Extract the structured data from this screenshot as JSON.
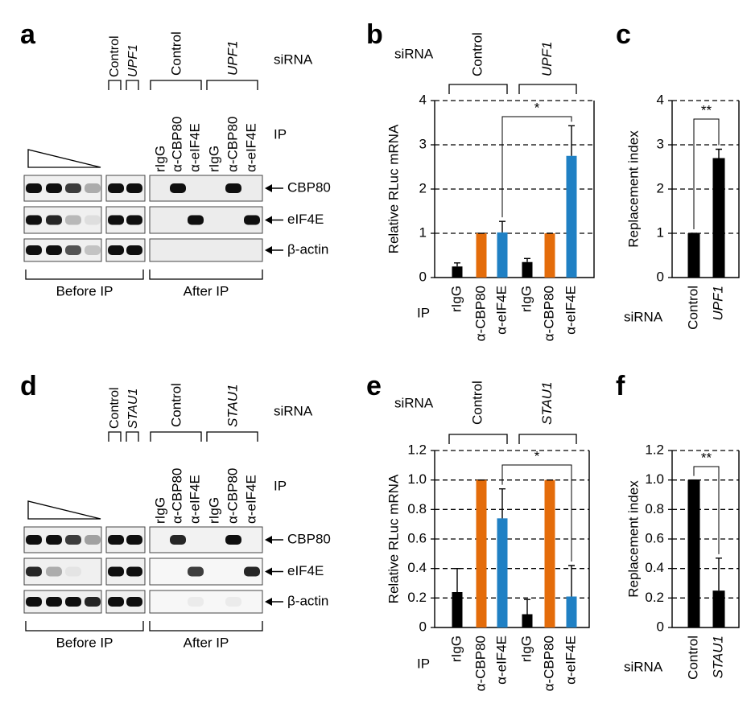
{
  "panel_letters": [
    "a",
    "b",
    "c",
    "d",
    "e",
    "f"
  ],
  "blots": [
    {
      "sirna_label": "siRNA",
      "before_sirna": [
        "Control",
        "UPF1"
      ],
      "after_sirna": [
        "Control",
        "UPF1"
      ],
      "ip_label": "IP",
      "ip_lanes": [
        "rIgG",
        "α-CBP80",
        "α-eIF4E",
        "rIgG",
        "α-CBP80",
        "α-eIF4E"
      ],
      "proteins": [
        "CBP80",
        "eIF4E",
        "β-actin"
      ],
      "sections": [
        "Before IP",
        "After IP"
      ]
    },
    {
      "sirna_label": "siRNA",
      "before_sirna": [
        "Control",
        "STAU1"
      ],
      "after_sirna": [
        "Control",
        "STAU1"
      ],
      "ip_label": "IP",
      "ip_lanes": [
        "rIgG",
        "α-CBP80",
        "α-eIF4E",
        "rIgG",
        "α-CBP80",
        "α-eIF4E"
      ],
      "proteins": [
        "CBP80",
        "eIF4E",
        "β-actin"
      ],
      "sections": [
        "Before IP",
        "After IP"
      ]
    }
  ],
  "chart_data": [
    {
      "type": "bar",
      "ylabel": "Relative RLuc mRNA",
      "ylim": [
        0,
        4
      ],
      "yticks": [
        0,
        1,
        2,
        3,
        4
      ],
      "grid": true,
      "categories": [
        "rIgG",
        "α-CBP80",
        "α-eIF4E",
        "rIgG",
        "α-CBP80",
        "α-eIF4E"
      ],
      "values": [
        0.25,
        1,
        1.02,
        0.35,
        1,
        2.75
      ],
      "errors": [
        0.08,
        0,
        0.25,
        0.08,
        0,
        0.68
      ],
      "colors": [
        "#000000",
        "#e46c0a",
        "#1f80c4",
        "#000000",
        "#e46c0a",
        "#1f80c4"
      ],
      "x_axis_label": "IP",
      "group_label": "siRNA",
      "groups": [
        "Control",
        "UPF1"
      ],
      "significance": "*"
    },
    {
      "type": "bar",
      "ylabel": "Replacement index",
      "ylim": [
        0,
        4
      ],
      "yticks": [
        0,
        1,
        2,
        3,
        4
      ],
      "grid": true,
      "categories": [
        "Control",
        "UPF1"
      ],
      "values": [
        1,
        2.7
      ],
      "errors": [
        0,
        0.2
      ],
      "colors": [
        "#000000",
        "#000000"
      ],
      "x_axis_label": "siRNA",
      "significance": "**"
    },
    {
      "type": "bar",
      "ylabel": "Relative RLuc mRNA",
      "ylim": [
        0,
        1.2
      ],
      "yticks": [
        0,
        0.2,
        0.4,
        0.6,
        0.8,
        {
          "value": 1,
          "label": "1.0"
        },
        1.2
      ],
      "grid": true,
      "categories": [
        "rIgG",
        "α-CBP80",
        "α-eIF4E",
        "rIgG",
        "α-CBP80",
        "α-eIF4E"
      ],
      "values": [
        0.24,
        1,
        0.74,
        0.09,
        1,
        0.21
      ],
      "errors": [
        0.16,
        0,
        0.2,
        0.1,
        0,
        0.21
      ],
      "colors": [
        "#000000",
        "#e46c0a",
        "#1f80c4",
        "#000000",
        "#e46c0a",
        "#1f80c4"
      ],
      "x_axis_label": "IP",
      "group_label": "siRNA",
      "groups": [
        "Control",
        "STAU1"
      ],
      "significance": "*"
    },
    {
      "type": "bar",
      "ylabel": "Replacement index",
      "ylim": [
        0,
        1.2
      ],
      "yticks": [
        0,
        0.2,
        0.4,
        0.6,
        0.8,
        {
          "value": 1,
          "label": "1.0"
        },
        1.2
      ],
      "grid": true,
      "categories": [
        "Control",
        "STAU1"
      ],
      "values": [
        1,
        0.25
      ],
      "errors": [
        0,
        0.22
      ],
      "colors": [
        "#000000",
        "#000000"
      ],
      "x_axis_label": "siRNA",
      "significance": "**"
    }
  ]
}
